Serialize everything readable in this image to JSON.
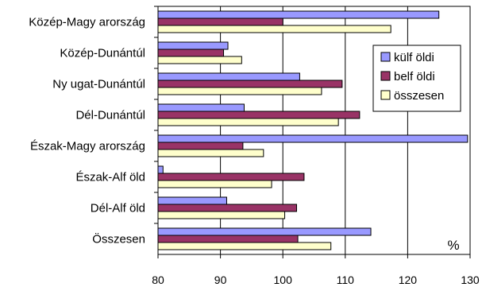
{
  "chart_data": {
    "type": "bar",
    "orientation": "horizontal",
    "categories": [
      "Közép-Magy arország",
      "Közép-Dunántúl",
      "Ny ugat-Dunántúl",
      "Dél-Dunántúl",
      "Észak-Magy arország",
      "Észak-Alf öld",
      "Dél-Alf öld",
      "Összesen"
    ],
    "series": [
      {
        "name": "külf öldi",
        "color": "#9999ff",
        "values": [
          125.0,
          91.2,
          102.7,
          93.8,
          129.6,
          80.8,
          91.0,
          114.1
        ]
      },
      {
        "name": "belf öldi",
        "color": "#993366",
        "values": [
          100.0,
          90.5,
          109.5,
          112.3,
          93.6,
          103.4,
          102.2,
          102.4
        ]
      },
      {
        "name": "összesen",
        "color": "#ffffcc",
        "values": [
          117.3,
          93.4,
          106.2,
          108.9,
          96.9,
          98.2,
          100.3,
          107.7
        ]
      }
    ],
    "xlim": [
      80,
      130
    ],
    "xticks": [
      "80",
      "90",
      "100",
      "110",
      "120",
      "130"
    ],
    "unit_label": "%",
    "grid": true,
    "legend": "top-right"
  }
}
